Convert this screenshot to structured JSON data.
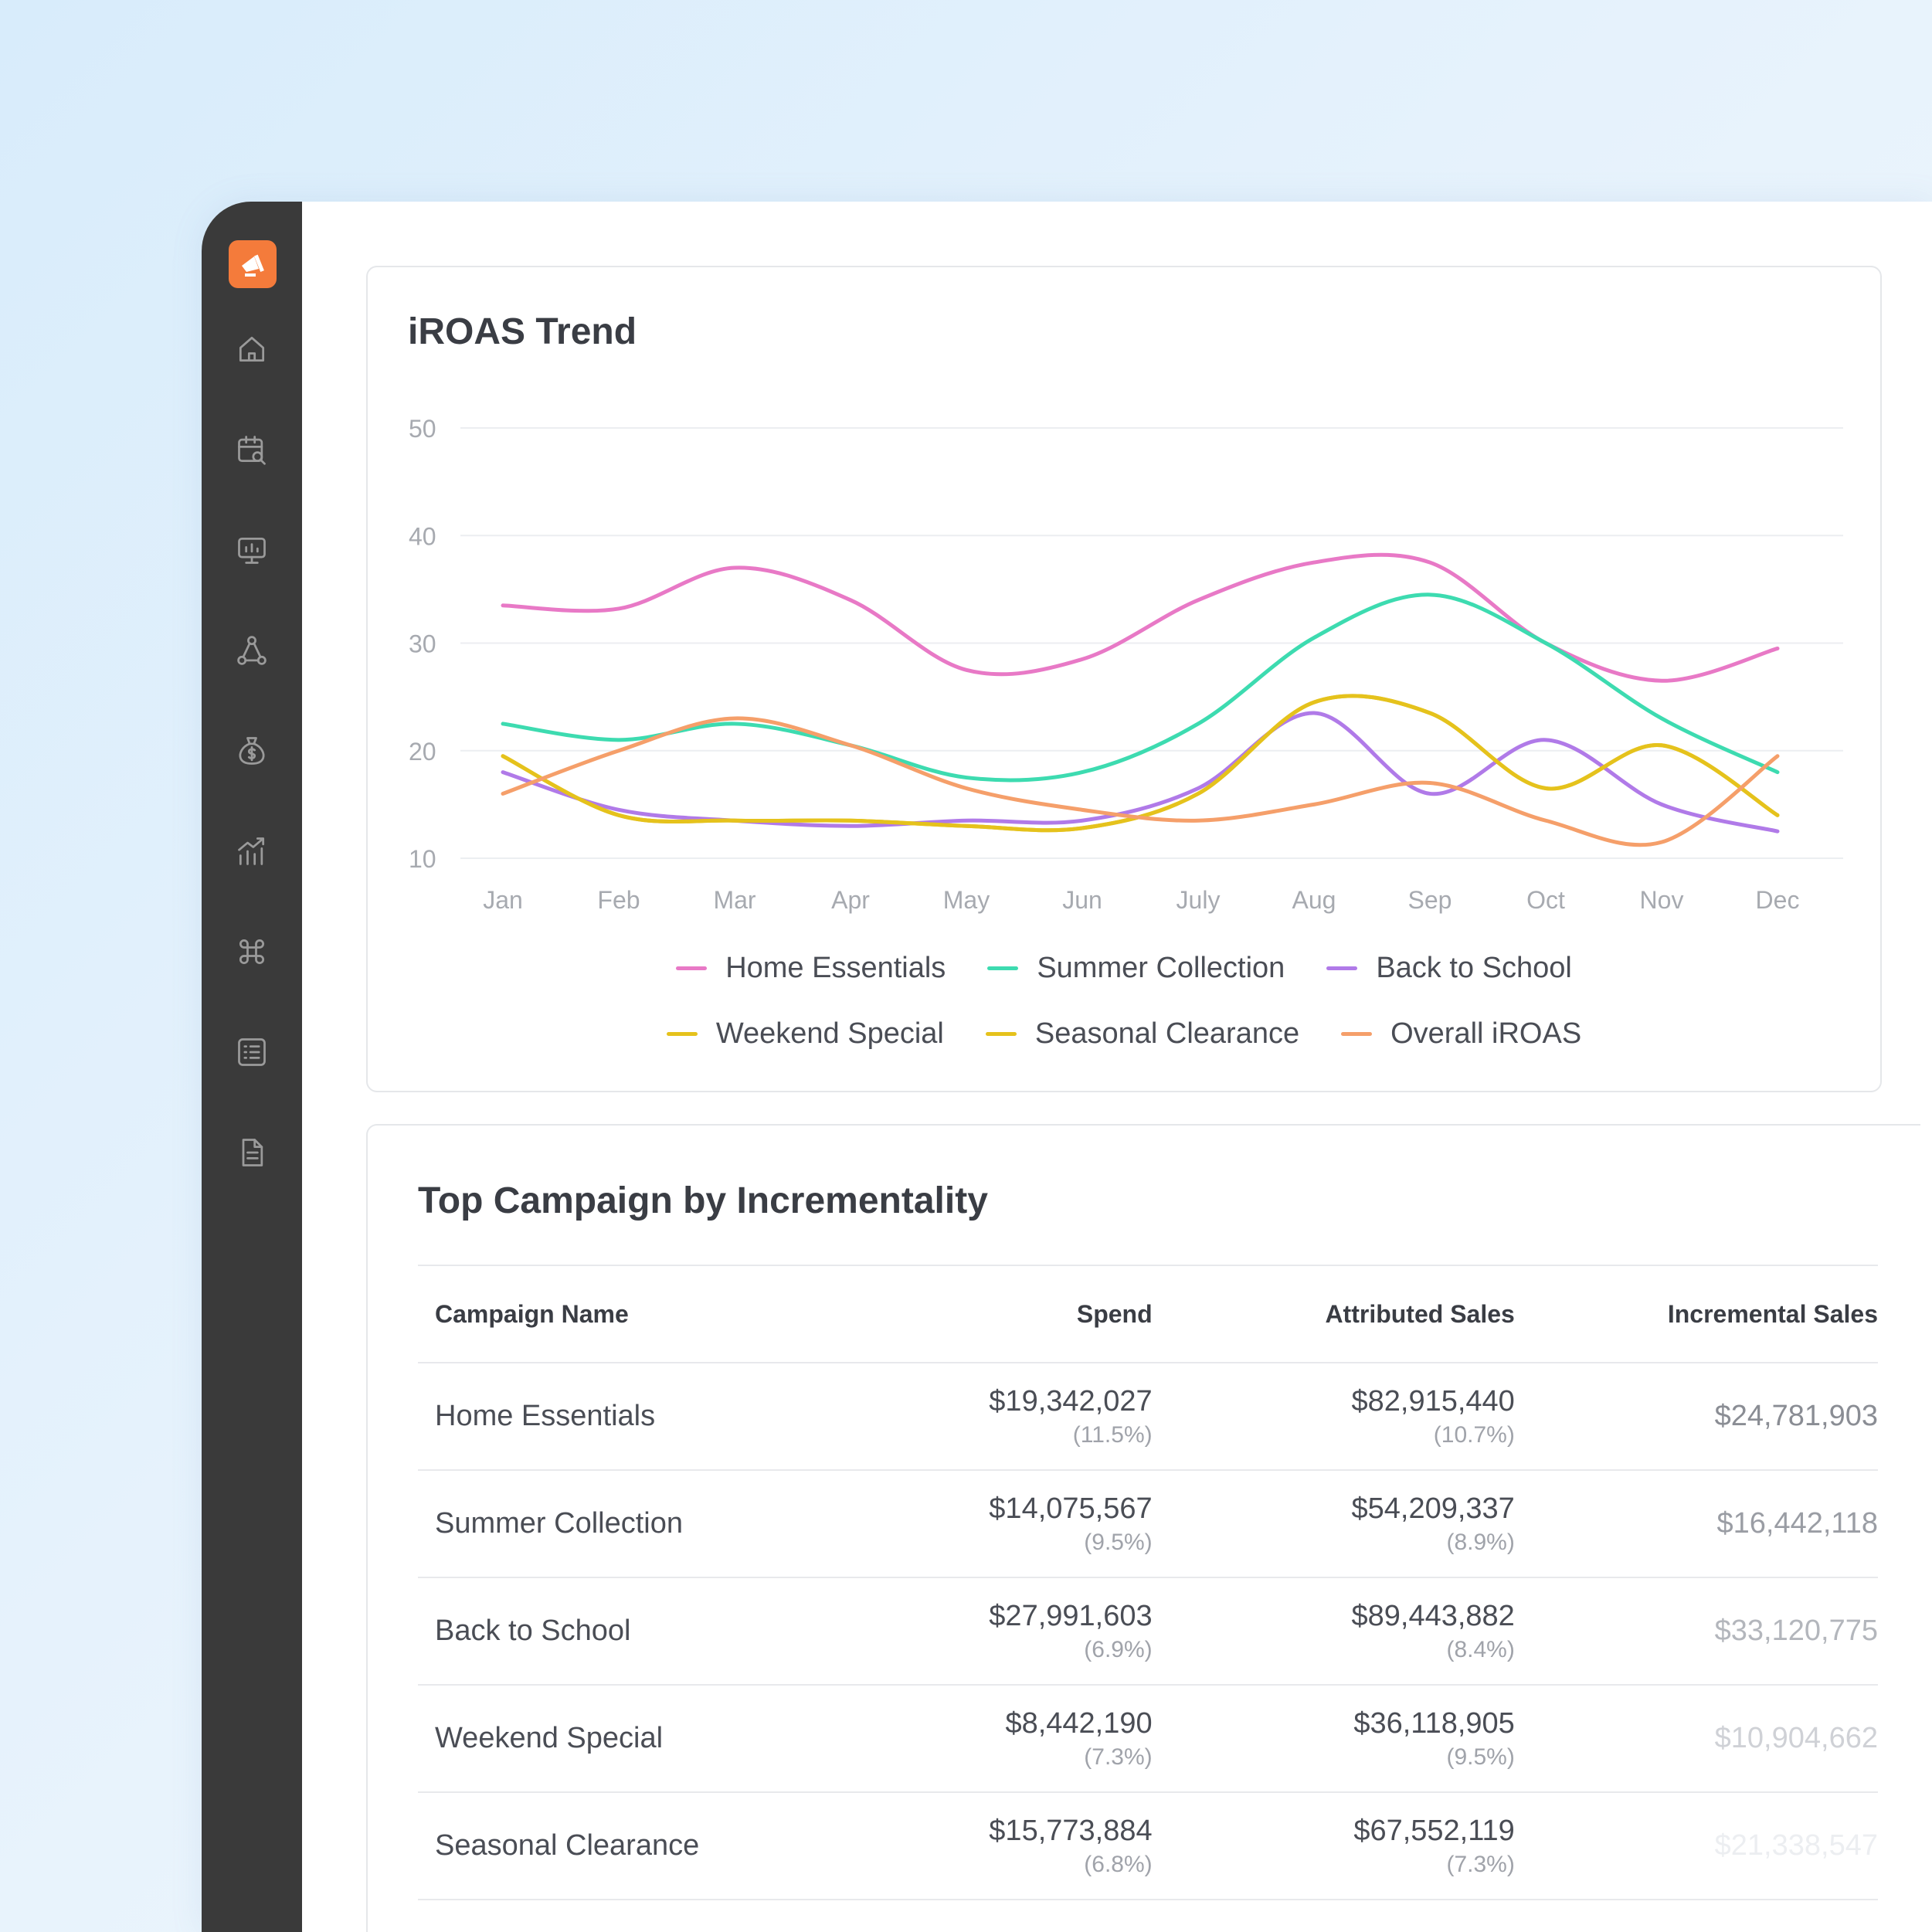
{
  "sidebar": {
    "icons": [
      "home-icon",
      "calendar-search-icon",
      "presentation-chart-icon",
      "network-icon",
      "money-bag-icon",
      "growth-chart-icon",
      "grid-apps-icon",
      "list-icon",
      "document-icon"
    ]
  },
  "chart": {
    "title": "iROAS Trend"
  },
  "chart_data": {
    "type": "line",
    "title": "iROAS Trend",
    "xlabel": "",
    "ylabel": "",
    "categories": [
      "Jan",
      "Feb",
      "Mar",
      "Apr",
      "May",
      "Jun",
      "July",
      "Aug",
      "Sep",
      "Oct",
      "Nov",
      "Dec"
    ],
    "yticks": [
      50,
      40,
      30,
      20,
      10
    ],
    "ylim": [
      8,
      50
    ],
    "grid": true,
    "legend": "bottom",
    "series": [
      {
        "name": "Home Essentials",
        "color": "#e879c6",
        "values": [
          33.5,
          33.2,
          37,
          34,
          27.5,
          28.5,
          34,
          37.5,
          37.5,
          30,
          26.5,
          29.5
        ]
      },
      {
        "name": "Summer Collection",
        "color": "#3ddbb0",
        "values": [
          22.5,
          21,
          22.5,
          20.5,
          17.5,
          18,
          22.5,
          30.5,
          34.5,
          30,
          23,
          18
        ]
      },
      {
        "name": "Back to School",
        "color": "#b07ae8",
        "values": [
          18,
          14.5,
          13.5,
          13,
          13.5,
          13.5,
          16.5,
          23.5,
          16,
          21,
          15,
          12.5
        ]
      },
      {
        "name": "Weekend Special",
        "color": "#e5c21c",
        "values": [
          19.5,
          14,
          13.5,
          13.5,
          13,
          12.8,
          16,
          24.5,
          23.5,
          16.5,
          20.5,
          14
        ]
      },
      {
        "name": "Seasonal Clearance",
        "color": "#e5c21c",
        "values": [
          19.5,
          14,
          13.5,
          13.5,
          13,
          12.8,
          16,
          24.5,
          23.5,
          16.5,
          20.5,
          14
        ]
      },
      {
        "name": "Overall iROAS",
        "color": "#f59f6a",
        "values": [
          16,
          20,
          23,
          20.5,
          16.5,
          14.5,
          13.5,
          15,
          17,
          13.5,
          11.5,
          19.5
        ]
      }
    ]
  },
  "legend_rows": [
    [
      0,
      1,
      2
    ],
    [
      3,
      4,
      5
    ]
  ],
  "table": {
    "title": "Top Campaign by Incrementality",
    "headers": {
      "name": "Campaign Name",
      "spend": "Spend",
      "attributed": "Attributed Sales",
      "incremental": "Incremental Sales"
    },
    "rows": [
      {
        "name": "Home Essentials",
        "spend": "$19,342,027",
        "spend_pct": "(11.5%)",
        "attributed": "$82,915,440",
        "attributed_pct": "(10.7%)",
        "incremental": "$24,781,903"
      },
      {
        "name": "Summer Collection",
        "spend": "$14,075,567",
        "spend_pct": "(9.5%)",
        "attributed": "$54,209,337",
        "attributed_pct": "(8.9%)",
        "incremental": "$16,442,118"
      },
      {
        "name": "Back to School",
        "spend": "$27,991,603",
        "spend_pct": "(6.9%)",
        "attributed": "$89,443,882",
        "attributed_pct": "(8.4%)",
        "incremental": "$33,120,775"
      },
      {
        "name": "Weekend Special",
        "spend": "$8,442,190",
        "spend_pct": "(7.3%)",
        "attributed": "$36,118,905",
        "attributed_pct": "(9.5%)",
        "incremental": "$10,904,662"
      },
      {
        "name": "Seasonal Clearance",
        "spend": "$15,773,884",
        "spend_pct": "(6.8%)",
        "attributed": "$67,552,119",
        "attributed_pct": "(7.3%)",
        "incremental": "$21,338,547"
      }
    ]
  }
}
